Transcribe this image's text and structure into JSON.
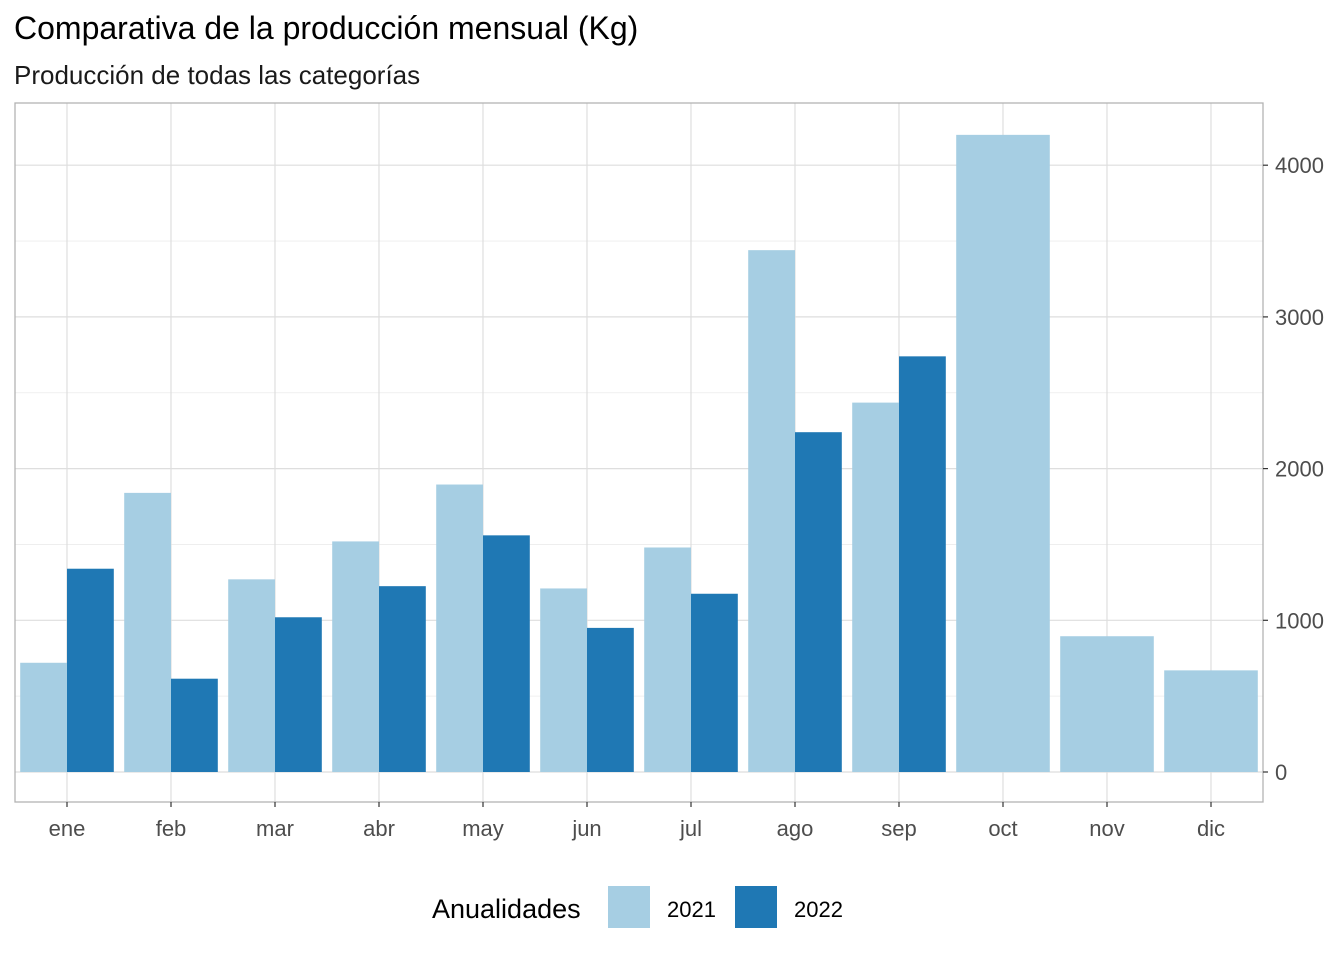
{
  "chart_data": {
    "type": "bar",
    "title": "Comparativa de la producción mensual (Kg)",
    "subtitle": "Producción de todas las categorías",
    "categories": [
      "ene",
      "feb",
      "mar",
      "abr",
      "may",
      "jun",
      "jul",
      "ago",
      "sep",
      "oct",
      "nov",
      "dic"
    ],
    "series": [
      {
        "name": "2021",
        "color": "#a6cee3",
        "values": [
          720,
          1840,
          1270,
          1520,
          1895,
          1210,
          1480,
          3440,
          2435,
          4200,
          895,
          670
        ]
      },
      {
        "name": "2022",
        "color": "#1f78b4",
        "values": [
          1340,
          615,
          1020,
          1225,
          1560,
          950,
          1175,
          2240,
          2740,
          null,
          null,
          null
        ]
      }
    ],
    "y_axis": {
      "position": "right",
      "ylim": [
        -180,
        4400
      ],
      "ticks": [
        0,
        1000,
        2000,
        3000,
        4000
      ],
      "tick_labels": [
        "0",
        "1000",
        "2000",
        "3000",
        "4000"
      ]
    },
    "legend": {
      "title": "Anualidades",
      "placement": "bottom"
    },
    "grid": true,
    "xlabel": "",
    "ylabel": ""
  }
}
